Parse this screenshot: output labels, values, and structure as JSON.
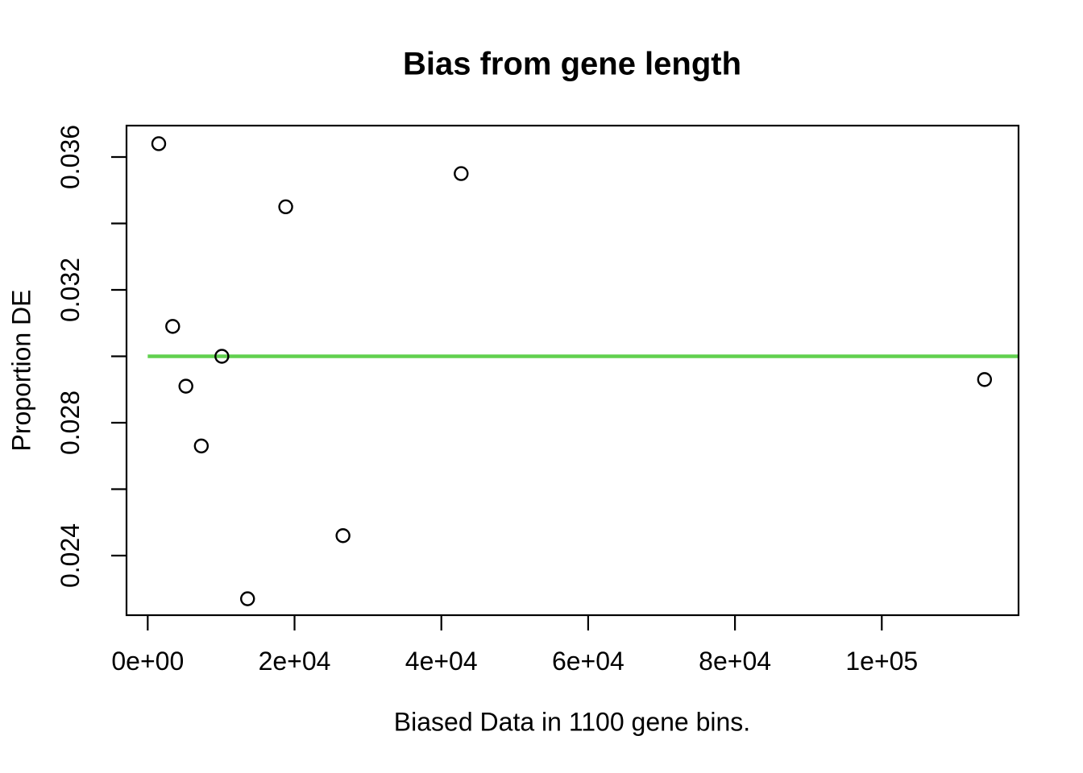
{
  "figure": {
    "background_color": "#ffffff",
    "foreground_color": "#000000"
  },
  "chart_data": {
    "type": "scatter",
    "title": "Bias from gene length",
    "xlabel": "Biased Data in 1100 gene bins.",
    "ylabel": "Proportion DE",
    "xlim": [
      -2890,
      118630
    ],
    "ylim": [
      0.022206,
      0.036945
    ],
    "grid": false,
    "legend": null,
    "marker": "open-circle",
    "point_color": "#000000",
    "x_ticks": [
      {
        "value": 0,
        "label": "0e+00"
      },
      {
        "value": 20000,
        "label": "2e+04"
      },
      {
        "value": 40000,
        "label": "4e+04"
      },
      {
        "value": 60000,
        "label": "6e+04"
      },
      {
        "value": 80000,
        "label": "8e+04"
      },
      {
        "value": 100000,
        "label": "1e+05"
      }
    ],
    "y_ticks": [
      {
        "value": 0.024,
        "label": "0.024"
      },
      {
        "value": 0.026,
        "label": ""
      },
      {
        "value": 0.028,
        "label": "0.028"
      },
      {
        "value": 0.03,
        "label": ""
      },
      {
        "value": 0.032,
        "label": "0.032"
      },
      {
        "value": 0.034,
        "label": ""
      },
      {
        "value": 0.036,
        "label": "0.036"
      }
    ],
    "points": [
      {
        "x": 1500,
        "y": 0.0364
      },
      {
        "x": 3400,
        "y": 0.0309
      },
      {
        "x": 5200,
        "y": 0.0291
      },
      {
        "x": 7300,
        "y": 0.0273
      },
      {
        "x": 10100,
        "y": 0.03
      },
      {
        "x": 13600,
        "y": 0.0227
      },
      {
        "x": 18800,
        "y": 0.0345
      },
      {
        "x": 26600,
        "y": 0.0246
      },
      {
        "x": 42700,
        "y": 0.0355
      },
      {
        "x": 114000,
        "y": 0.0293
      }
    ],
    "reference_line": {
      "y": 0.03,
      "x_start": 0,
      "x_end": 118600,
      "color": "#61D04F"
    }
  }
}
